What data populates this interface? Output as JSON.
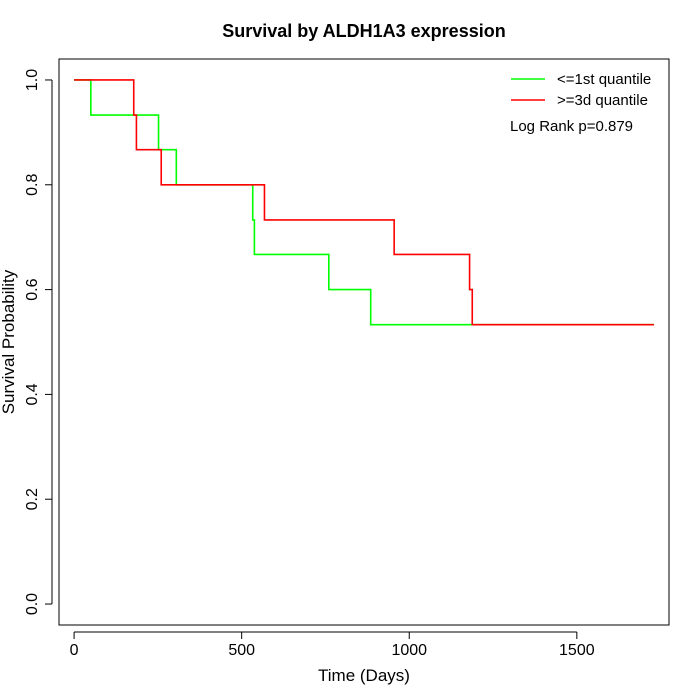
{
  "chart_data": {
    "type": "line",
    "title": "Survival by ALDH1A3 expression",
    "xlabel": "Time (Days)",
    "ylabel": "Survival Probability",
    "xlim": [
      -45,
      1775
    ],
    "ylim": [
      -0.04,
      1.04
    ],
    "x_ticks": [
      0,
      500,
      1000,
      1500
    ],
    "x_tick_labels": [
      "0",
      "500",
      "1000",
      "1500"
    ],
    "y_ticks": [
      0.0,
      0.2,
      0.4,
      0.6,
      0.8,
      1.0
    ],
    "y_tick_labels": [
      "0.0",
      "0.2",
      "0.4",
      "0.6",
      "0.8",
      "1.0"
    ],
    "grid": false,
    "legend_position": "top-right",
    "annotation": "Log Rank p=0.879",
    "series": [
      {
        "name": "<=1st quantile",
        "color": "#00ff00",
        "step_points": [
          [
            0,
            1.0
          ],
          [
            50,
            1.0
          ],
          [
            50,
            0.933
          ],
          [
            252,
            0.933
          ],
          [
            252,
            0.867
          ],
          [
            305,
            0.867
          ],
          [
            305,
            0.8
          ],
          [
            533,
            0.8
          ],
          [
            533,
            0.733
          ],
          [
            538,
            0.733
          ],
          [
            538,
            0.667
          ],
          [
            760,
            0.667
          ],
          [
            760,
            0.6
          ],
          [
            885,
            0.6
          ],
          [
            885,
            0.533
          ],
          [
            1730,
            0.533
          ]
        ]
      },
      {
        "name": ">=3d quantile",
        "color": "#ff0000",
        "step_points": [
          [
            0,
            1.0
          ],
          [
            178,
            1.0
          ],
          [
            178,
            0.933
          ],
          [
            186,
            0.933
          ],
          [
            186,
            0.867
          ],
          [
            260,
            0.867
          ],
          [
            260,
            0.8
          ],
          [
            568,
            0.8
          ],
          [
            568,
            0.733
          ],
          [
            955,
            0.733
          ],
          [
            955,
            0.667
          ],
          [
            1180,
            0.667
          ],
          [
            1180,
            0.6
          ],
          [
            1188,
            0.6
          ],
          [
            1188,
            0.533
          ],
          [
            1730,
            0.533
          ]
        ]
      }
    ]
  }
}
